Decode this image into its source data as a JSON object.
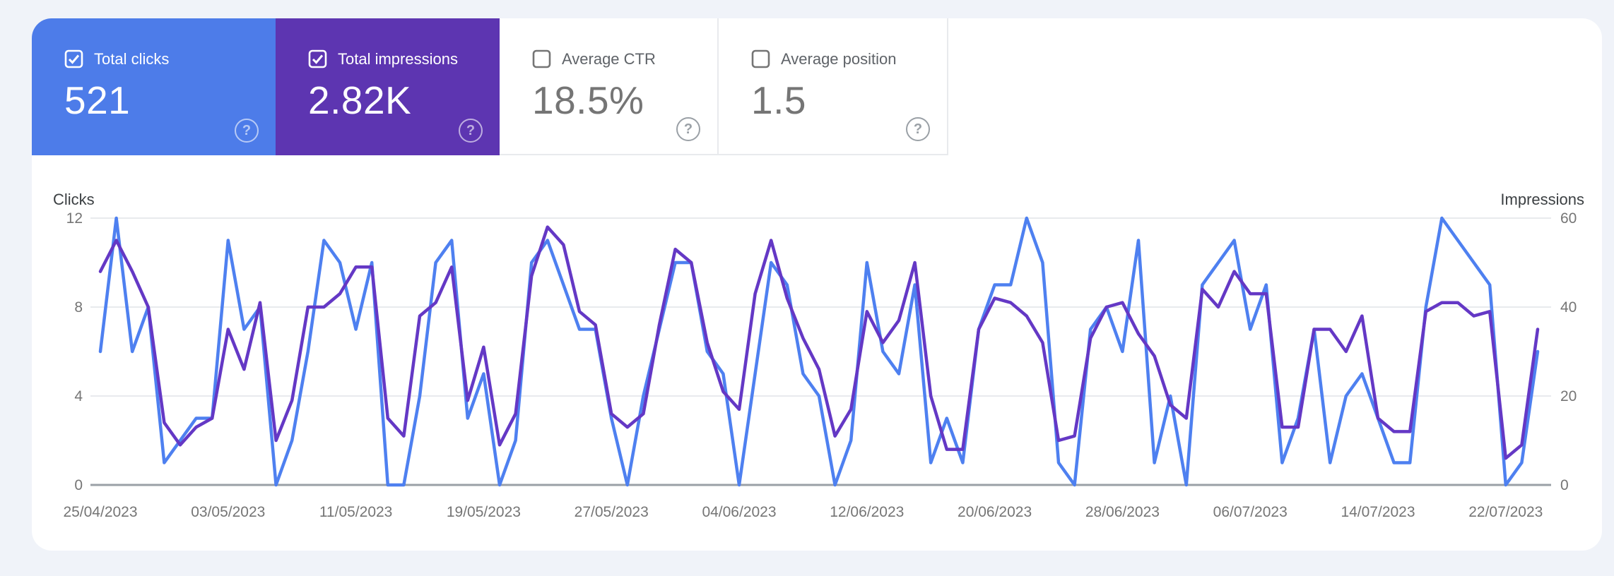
{
  "page": {
    "background": "#f0f3f9",
    "panel_background": "#ffffff"
  },
  "cards": [
    {
      "label": "Total clicks",
      "value": "521",
      "checked": true,
      "bg": "#4d7ce9"
    },
    {
      "label": "Total impressions",
      "value": "2.82K",
      "checked": true,
      "bg": "#5d35b1"
    },
    {
      "label": "Average CTR",
      "value": "18.5%",
      "checked": false
    },
    {
      "label": "Average position",
      "value": "1.5",
      "checked": false
    }
  ],
  "help_icon_glyph": "?",
  "chart_data": {
    "type": "line",
    "x": [
      "25/04/2023",
      "26/04/2023",
      "27/04/2023",
      "28/04/2023",
      "29/04/2023",
      "30/04/2023",
      "01/05/2023",
      "02/05/2023",
      "03/05/2023",
      "04/05/2023",
      "05/05/2023",
      "06/05/2023",
      "07/05/2023",
      "08/05/2023",
      "09/05/2023",
      "10/05/2023",
      "11/05/2023",
      "12/05/2023",
      "13/05/2023",
      "14/05/2023",
      "15/05/2023",
      "16/05/2023",
      "17/05/2023",
      "18/05/2023",
      "19/05/2023",
      "20/05/2023",
      "21/05/2023",
      "22/05/2023",
      "23/05/2023",
      "24/05/2023",
      "25/05/2023",
      "26/05/2023",
      "27/05/2023",
      "28/05/2023",
      "29/05/2023",
      "30/05/2023",
      "31/05/2023",
      "01/06/2023",
      "02/06/2023",
      "03/06/2023",
      "04/06/2023",
      "05/06/2023",
      "06/06/2023",
      "07/06/2023",
      "08/06/2023",
      "09/06/2023",
      "10/06/2023",
      "11/06/2023",
      "12/06/2023",
      "13/06/2023",
      "14/06/2023",
      "15/06/2023",
      "16/06/2023",
      "17/06/2023",
      "18/06/2023",
      "19/06/2023",
      "20/06/2023",
      "21/06/2023",
      "22/06/2023",
      "23/06/2023",
      "24/06/2023",
      "25/06/2023",
      "26/06/2023",
      "27/06/2023",
      "28/06/2023",
      "29/06/2023",
      "30/06/2023",
      "01/07/2023",
      "02/07/2023",
      "03/07/2023",
      "04/07/2023",
      "05/07/2023",
      "06/07/2023",
      "07/07/2023",
      "08/07/2023",
      "09/07/2023",
      "10/07/2023",
      "11/07/2023",
      "12/07/2023",
      "13/07/2023",
      "14/07/2023",
      "15/07/2023",
      "16/07/2023",
      "17/07/2023",
      "18/07/2023",
      "19/07/2023",
      "20/07/2023",
      "21/07/2023",
      "22/07/2023",
      "23/07/2023",
      "24/07/2023"
    ],
    "x_tick_step": 8,
    "series": [
      {
        "name": "Clicks",
        "axis": "left",
        "color": "#4e80f0",
        "values": [
          6,
          12,
          6,
          8,
          1,
          2,
          3,
          3,
          11,
          7,
          8,
          0,
          2,
          6,
          11,
          10,
          7,
          10,
          0,
          0,
          4,
          10,
          11,
          3,
          5,
          0,
          2,
          10,
          11,
          9,
          7,
          7,
          3,
          0,
          4,
          7,
          10,
          10,
          6,
          5,
          0,
          5,
          10,
          9,
          5,
          4,
          0,
          2,
          10,
          6,
          5,
          9,
          1,
          3,
          1,
          7,
          9,
          9,
          12,
          10,
          1,
          0,
          7,
          8,
          6,
          11,
          1,
          4,
          0,
          9,
          10,
          11,
          7,
          9,
          1,
          3,
          7,
          1,
          4,
          5,
          3,
          1,
          1,
          8,
          12,
          11,
          10,
          9,
          0,
          1,
          6
        ]
      },
      {
        "name": "Impressions",
        "axis": "right",
        "color": "#6438c5",
        "values": [
          48,
          55,
          48,
          40,
          14,
          9,
          13,
          15,
          35,
          26,
          41,
          10,
          19,
          40,
          40,
          43,
          49,
          49,
          15,
          11,
          38,
          41,
          49,
          19,
          31,
          9,
          16,
          47,
          58,
          54,
          39,
          36,
          16,
          13,
          16,
          36,
          53,
          50,
          32,
          21,
          17,
          43,
          55,
          42,
          33,
          26,
          11,
          17,
          39,
          32,
          37,
          50,
          20,
          8,
          8,
          35,
          42,
          41,
          38,
          32,
          10,
          11,
          33,
          40,
          41,
          34,
          29,
          18,
          15,
          44,
          40,
          48,
          43,
          43,
          13,
          13,
          35,
          35,
          30,
          38,
          15,
          12,
          12,
          39,
          41,
          41,
          38,
          39,
          6,
          9,
          35
        ]
      }
    ],
    "left_axis": {
      "label": "Clicks",
      "ticks": [
        0,
        4,
        8,
        12
      ],
      "max": 12
    },
    "right_axis": {
      "label": "Impressions",
      "ticks": [
        0,
        20,
        40,
        60
      ],
      "max": 60
    },
    "grid": true,
    "legend_position": "none",
    "colors": {
      "gridline": "#e8eaed",
      "zero_axis": "#9aa0a6",
      "tick_text": "#757575",
      "axis_title": "#3c4043"
    },
    "totals": {
      "clicks": 521,
      "impressions": 2821,
      "avg_ctr": "18.5%",
      "avg_position": "1.5"
    }
  }
}
